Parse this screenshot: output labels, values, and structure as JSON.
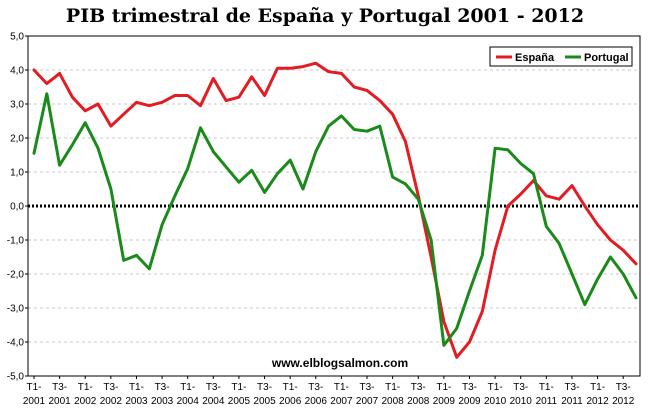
{
  "chart_data": {
    "type": "line",
    "title": "PIB trimestral de España y Portugal 2001 - 2012",
    "watermark": "www.elblogsalmon.com",
    "xlabel": "",
    "ylabel": "",
    "ylim": [
      -5,
      5
    ],
    "yticks": [
      "5,0",
      "4,0",
      "3,0",
      "2,0",
      "1,0",
      "0,0",
      "-1,0",
      "-2,0",
      "-3,0",
      "-4,0",
      "-5,0"
    ],
    "grid": true,
    "legend": "top-right",
    "xtick_labels": [
      {
        "top": "T1-",
        "bottom": "2001"
      },
      {
        "top": "T3-",
        "bottom": "2001"
      },
      {
        "top": "T1-",
        "bottom": "2002"
      },
      {
        "top": "T3-",
        "bottom": "2002"
      },
      {
        "top": "T1-",
        "bottom": "2003"
      },
      {
        "top": "T3-",
        "bottom": "2003"
      },
      {
        "top": "T1-",
        "bottom": "2004"
      },
      {
        "top": "T3-",
        "bottom": "2004"
      },
      {
        "top": "T1-",
        "bottom": "2005"
      },
      {
        "top": "T3-",
        "bottom": "2005"
      },
      {
        "top": "T1-",
        "bottom": "2006"
      },
      {
        "top": "T3-",
        "bottom": "2006"
      },
      {
        "top": "T1-",
        "bottom": "2007"
      },
      {
        "top": "T3-",
        "bottom": "2007"
      },
      {
        "top": "T1-",
        "bottom": "2008"
      },
      {
        "top": "T3-",
        "bottom": "2008"
      },
      {
        "top": "T1-",
        "bottom": "2009"
      },
      {
        "top": "T3-",
        "bottom": "2009"
      },
      {
        "top": "T1-",
        "bottom": "2010"
      },
      {
        "top": "T3-",
        "bottom": "2010"
      },
      {
        "top": "T1-",
        "bottom": "2011"
      },
      {
        "top": "T3-",
        "bottom": "2011"
      },
      {
        "top": "T1-",
        "bottom": "2012"
      },
      {
        "top": "T3-",
        "bottom": "2012"
      }
    ],
    "series": [
      {
        "name": "España",
        "color": "#e31b23",
        "values": [
          4.0,
          3.6,
          3.9,
          3.2,
          2.8,
          3.0,
          2.35,
          2.7,
          3.05,
          2.95,
          3.05,
          3.25,
          3.25,
          2.95,
          3.75,
          3.1,
          3.2,
          3.8,
          3.25,
          4.05,
          4.05,
          4.1,
          4.2,
          3.95,
          3.9,
          3.5,
          3.4,
          3.1,
          2.7,
          1.9,
          0.3,
          -1.5,
          -3.4,
          -4.45,
          -4.0,
          -3.1,
          -1.3,
          0.0,
          0.35,
          0.75,
          0.3,
          0.2,
          0.6,
          0.0,
          -0.55,
          -1.0,
          -1.3,
          -1.7
        ]
      },
      {
        "name": "Portugal",
        "color": "#1a8a1a",
        "values": [
          1.55,
          3.3,
          1.2,
          1.8,
          2.45,
          1.7,
          0.5,
          -1.6,
          -1.45,
          -1.85,
          -0.55,
          0.3,
          1.1,
          2.3,
          1.6,
          1.15,
          0.7,
          1.05,
          0.4,
          0.95,
          1.35,
          0.5,
          1.6,
          2.35,
          2.65,
          2.25,
          2.2,
          2.35,
          0.85,
          0.65,
          0.2,
          -1.0,
          -4.1,
          -3.6,
          -2.5,
          -1.45,
          1.7,
          1.65,
          1.25,
          0.95,
          -0.6,
          -1.1,
          -2.0,
          -2.9,
          -2.15,
          -1.5,
          -2.0,
          -2.7
        ]
      }
    ]
  }
}
